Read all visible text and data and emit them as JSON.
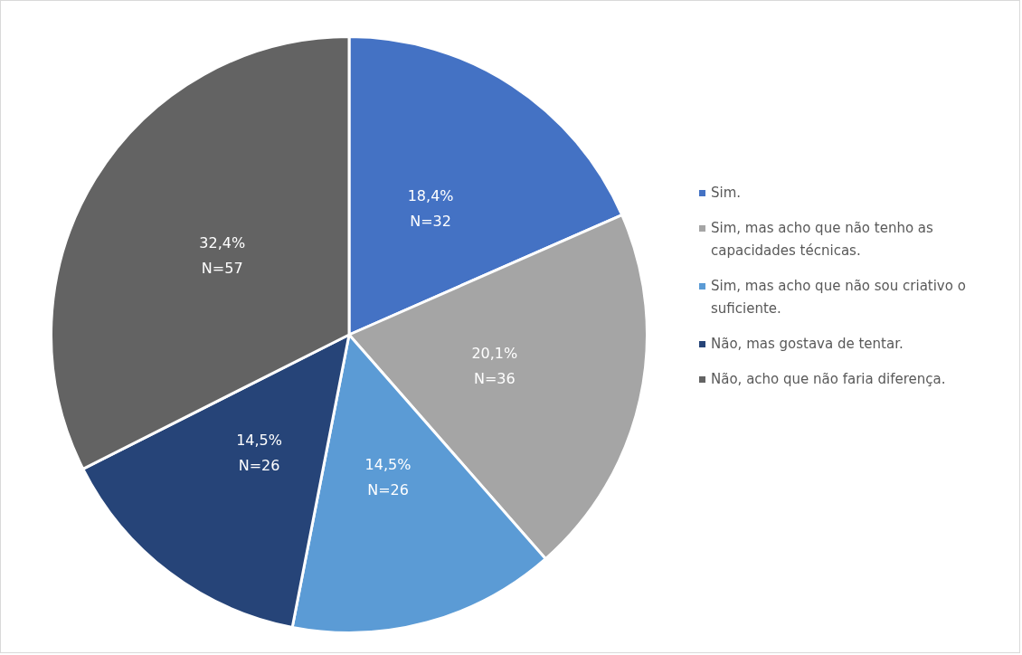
{
  "chart_data": {
    "type": "pie",
    "categories": [
      "Sim.",
      "Sim, mas acho que não tenho as capacidades técnicas.",
      "Sim, mas acho que não sou criativo o suficiente.",
      "Não, mas gostava de tentar.",
      "Não, acho que não faria diferença."
    ],
    "values": [
      18.4,
      20.1,
      14.5,
      14.5,
      32.4
    ],
    "colors": [
      "#4472c4",
      "#a5a5a5",
      "#5b9bd5",
      "#264478",
      "#636363"
    ],
    "value_labels": [
      "18,4%\nN=32",
      "20,1%\nN=36",
      "14,5%\nN=26",
      "14,5%\nN=26",
      "32,4%\nN=57"
    ],
    "legend": "right"
  }
}
